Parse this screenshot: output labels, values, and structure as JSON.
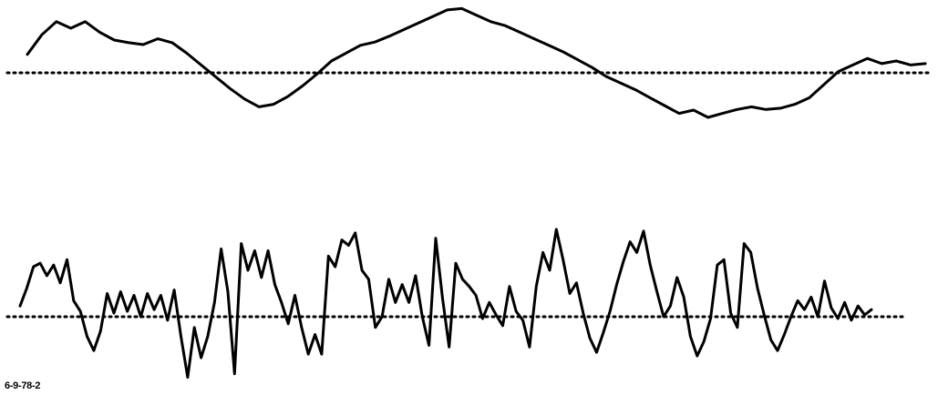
{
  "figure_code": "6-9-78-2",
  "colors": {
    "trace": "#000000",
    "baseline": "#000000",
    "background": "#ffffff"
  },
  "chart_data": [
    {
      "type": "line",
      "title": "",
      "xlabel": "",
      "ylabel": "",
      "xlim": [
        0,
        100
      ],
      "ylim": [
        -1,
        1
      ],
      "grid": false,
      "baseline": {
        "y": 0,
        "style": "dotted"
      },
      "series": [
        {
          "values": [
            0.28,
            0.58,
            0.78,
            0.68,
            0.78,
            0.62,
            0.5,
            0.46,
            0.43,
            0.52,
            0.46,
            0.3,
            0.12,
            -0.06,
            -0.24,
            -0.4,
            -0.52,
            -0.48,
            -0.36,
            -0.2,
            -0.02,
            0.18,
            0.3,
            0.42,
            0.47,
            0.56,
            0.66,
            0.76,
            0.86,
            0.96,
            0.98,
            0.88,
            0.78,
            0.72,
            0.62,
            0.52,
            0.42,
            0.32,
            0.2,
            0.08,
            -0.06,
            -0.16,
            -0.26,
            -0.38,
            -0.5,
            -0.62,
            -0.57,
            -0.68,
            -0.62,
            -0.56,
            -0.52,
            -0.56,
            -0.54,
            -0.48,
            -0.38,
            -0.18,
            0.02,
            0.12,
            0.22,
            0.14,
            0.18,
            0.12,
            0.14
          ]
        }
      ]
    },
    {
      "type": "line",
      "title": "",
      "xlabel": "",
      "ylabel": "",
      "xlim": [
        0,
        100
      ],
      "ylim": [
        -1,
        1
      ],
      "grid": false,
      "baseline": {
        "y": 0,
        "style": "dotted"
      },
      "series": [
        {
          "values": [
            0.12,
            0.32,
            0.56,
            0.6,
            0.46,
            0.58,
            0.38,
            0.64,
            0.18,
            0.06,
            -0.22,
            -0.38,
            -0.16,
            0.26,
            0.04,
            0.28,
            0.06,
            0.24,
            0.0,
            0.26,
            0.08,
            0.24,
            -0.04,
            0.3,
            -0.22,
            -0.68,
            -0.12,
            -0.46,
            -0.22,
            0.16,
            0.76,
            0.28,
            -0.64,
            0.82,
            0.52,
            0.74,
            0.44,
            0.74,
            0.36,
            0.16,
            -0.08,
            0.24,
            -0.12,
            -0.42,
            -0.2,
            -0.42,
            0.68,
            0.56,
            0.86,
            0.8,
            0.94,
            0.52,
            0.42,
            -0.12,
            0.0,
            0.42,
            0.16,
            0.36,
            0.16,
            0.46,
            0.0,
            -0.32,
            0.88,
            0.22,
            -0.34,
            0.6,
            0.42,
            0.34,
            0.24,
            -0.02,
            0.16,
            0.02,
            -0.1,
            0.34,
            0.06,
            -0.04,
            -0.34,
            0.34,
            0.72,
            0.52,
            0.98,
            0.64,
            0.26,
            0.38,
            0.04,
            -0.24,
            -0.4,
            -0.18,
            0.06,
            0.36,
            0.62,
            0.84,
            0.72,
            0.96,
            0.58,
            0.28,
            0.0,
            0.12,
            0.44,
            0.22,
            -0.22,
            -0.44,
            -0.28,
            -0.02,
            0.58,
            0.64,
            0.04,
            -0.12,
            0.82,
            0.72,
            0.32,
            0.02,
            -0.26,
            -0.38,
            -0.2,
            0.0,
            0.18,
            0.08,
            0.22,
            0.0,
            0.4,
            0.1,
            -0.02,
            0.16,
            -0.04,
            0.12,
            0.02,
            0.08
          ]
        }
      ]
    }
  ]
}
